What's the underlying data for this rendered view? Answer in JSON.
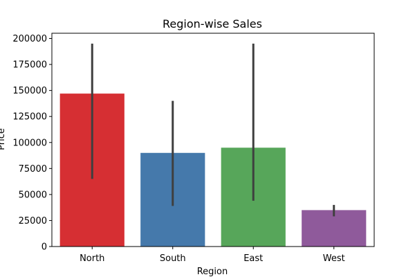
{
  "chart_data": {
    "type": "bar",
    "title": "Region-wise Sales",
    "xlabel": "Region",
    "ylabel": "Price",
    "categories": [
      "North",
      "South",
      "East",
      "West"
    ],
    "values": [
      147000,
      90000,
      95000,
      35000
    ],
    "error_low": [
      65000,
      39000,
      44000,
      29000
    ],
    "error_high": [
      195000,
      140000,
      195000,
      40000
    ],
    "colors": [
      "#d62f33",
      "#4579ab",
      "#57a65a",
      "#8f5a9b"
    ],
    "error_color": "#3f3f3f",
    "ylim": [
      0,
      205000
    ],
    "yticks": [
      0,
      25000,
      50000,
      75000,
      100000,
      125000,
      150000,
      175000,
      200000
    ],
    "grid": false
  }
}
